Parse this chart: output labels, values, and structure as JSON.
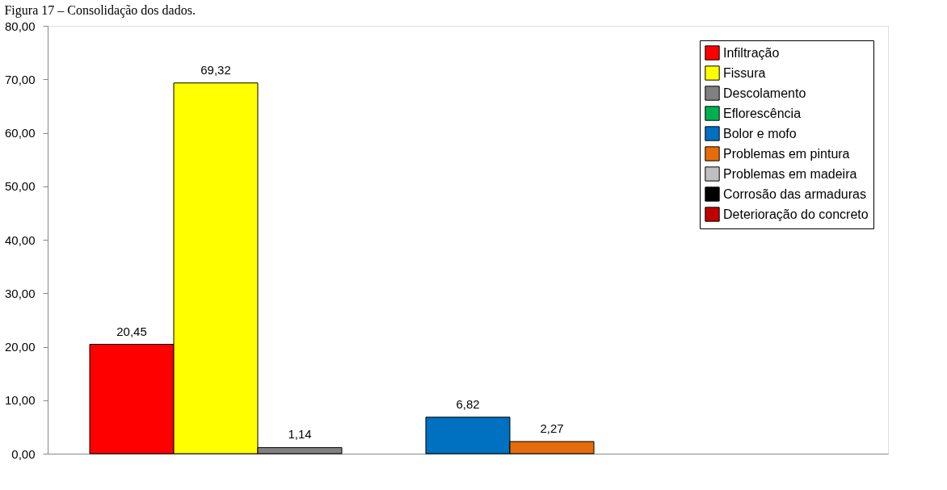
{
  "chart_data": {
    "type": "bar",
    "title": "Figura 17 – Consolidação dos dados.",
    "categories": [
      null
    ],
    "series": [
      {
        "name": "Infiltração",
        "color": "#ff0000",
        "values": [
          20.45
        ],
        "value_labels": [
          "20,45"
        ]
      },
      {
        "name": "Fissura",
        "color": "#ffff00",
        "values": [
          69.32
        ],
        "value_labels": [
          "69,32"
        ]
      },
      {
        "name": "Descolamento",
        "color": "#808080",
        "values": [
          1.14
        ],
        "value_labels": [
          "1,14"
        ]
      },
      {
        "name": "Eflorescência",
        "color": "#00b050",
        "values": [
          null
        ],
        "value_labels": [
          null
        ]
      },
      {
        "name": "Bolor e mofo",
        "color": "#0070c0",
        "values": [
          6.82
        ],
        "value_labels": [
          "6,82"
        ]
      },
      {
        "name": "Problemas em pintura",
        "color": "#e46c0a",
        "values": [
          2.27
        ],
        "value_labels": [
          "2,27"
        ]
      },
      {
        "name": "Problemas em madeira",
        "color": "#bfbfbf",
        "values": [
          null
        ],
        "value_labels": [
          null
        ]
      },
      {
        "name": "Corrosão das armaduras",
        "color": "#000000",
        "values": [
          null
        ],
        "value_labels": [
          null
        ]
      },
      {
        "name": "Deterioração do concreto",
        "color": "#c00000",
        "values": [
          null
        ],
        "value_labels": [
          null
        ]
      }
    ],
    "ylim": [
      0,
      80
    ],
    "yticks": [
      {
        "value": 0,
        "label": "0,00"
      },
      {
        "value": 10,
        "label": "10,00"
      },
      {
        "value": 20,
        "label": "20,00"
      },
      {
        "value": 30,
        "label": "30,00"
      },
      {
        "value": 40,
        "label": "40,00"
      },
      {
        "value": 50,
        "label": "50,00"
      },
      {
        "value": 60,
        "label": "60,00"
      },
      {
        "value": 70,
        "label": "70,00"
      },
      {
        "value": 80,
        "label": "80,00"
      }
    ],
    "grid": false,
    "legend": "top right"
  }
}
